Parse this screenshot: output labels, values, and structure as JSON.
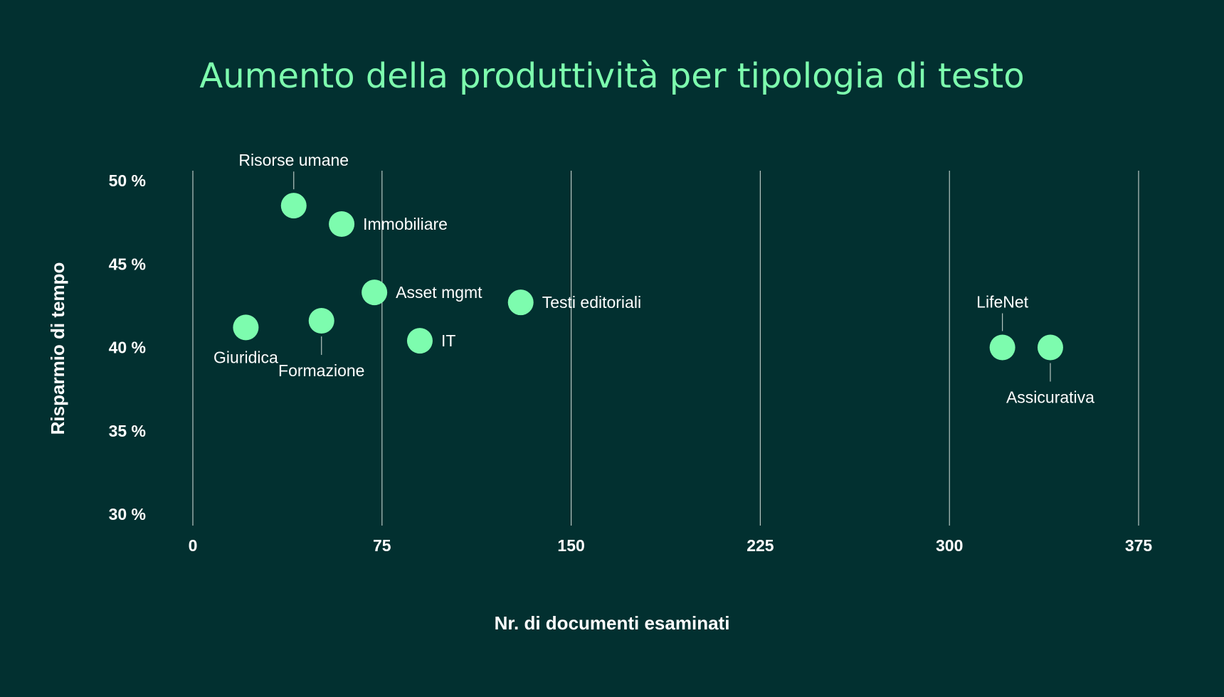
{
  "chart_data": {
    "type": "scatter",
    "title": "Aumento della produttività per tipologia di testo",
    "xlabel": "Nr. di documenti esaminati",
    "ylabel": "Risparmio di tempo",
    "xlim": [
      0,
      375
    ],
    "ylim": [
      30,
      50
    ],
    "x_ticks": [
      {
        "value": 0,
        "label": "0"
      },
      {
        "value": 75,
        "label": "75"
      },
      {
        "value": 150,
        "label": "150"
      },
      {
        "value": 225,
        "label": "225"
      },
      {
        "value": 300,
        "label": "300"
      },
      {
        "value": 375,
        "label": "375"
      }
    ],
    "y_ticks": [
      {
        "value": 50,
        "label": "50 %"
      },
      {
        "value": 45,
        "label": "45 %"
      },
      {
        "value": 40,
        "label": "40 %"
      },
      {
        "value": 35,
        "label": "35 %"
      },
      {
        "value": 30,
        "label": "30 %"
      }
    ],
    "grid": "vertical",
    "colors": {
      "background": "#023030",
      "point": "#7dfcae",
      "title": "#7dfcae",
      "text": "#ffffff",
      "grid": "#b8c6c2"
    },
    "points": [
      {
        "name": "Risorse umane",
        "x": 40,
        "y": 48.5,
        "label_position": "top-leader"
      },
      {
        "name": "Immobiliare",
        "x": 59,
        "y": 47.4,
        "label_position": "right"
      },
      {
        "name": "Asset mgmt",
        "x": 72,
        "y": 43.3,
        "label_position": "right"
      },
      {
        "name": "Testi editoriali",
        "x": 130,
        "y": 42.7,
        "label_position": "right"
      },
      {
        "name": "Giuridica",
        "x": 21,
        "y": 41.2,
        "label_position": "bottom"
      },
      {
        "name": "Formazione",
        "x": 51,
        "y": 41.6,
        "label_position": "bottom-leader"
      },
      {
        "name": "IT",
        "x": 90,
        "y": 40.4,
        "label_position": "right"
      },
      {
        "name": "LifeNet",
        "x": 321,
        "y": 40.0,
        "label_position": "top-leader"
      },
      {
        "name": "Assicurativa",
        "x": 340,
        "y": 40.0,
        "label_position": "bottom-leader"
      }
    ]
  }
}
